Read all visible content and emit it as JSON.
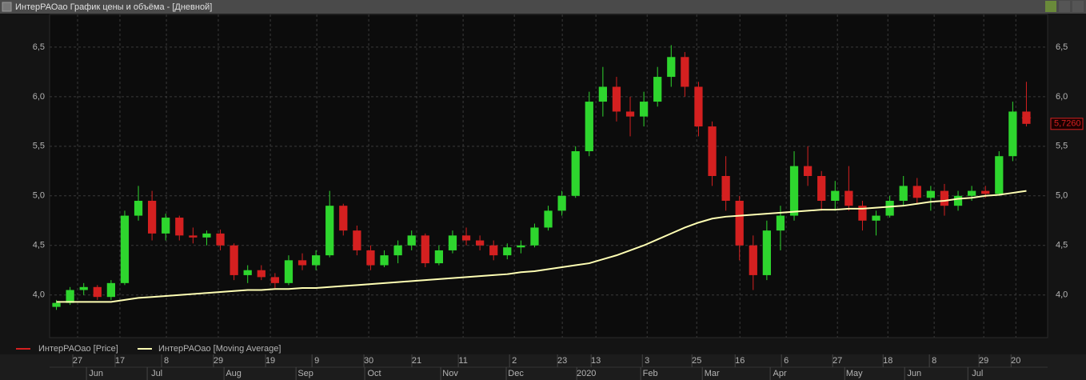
{
  "window_title": "ИнтерРАОао График цены и объёма - [Дневной]",
  "chart_data": {
    "type": "candlestick",
    "series": [
      {
        "name": "ИнтерРАОао [Price]",
        "color": "#d42020",
        "up_color": "#2ed62e",
        "down_color": "#d42020",
        "open": [
          3.88,
          3.92,
          4.05,
          4.08,
          3.98,
          4.12,
          4.8,
          4.95,
          4.62,
          4.78,
          4.6,
          4.58,
          4.62,
          4.5,
          4.2,
          4.25,
          4.18,
          4.12,
          4.35,
          4.3,
          4.4,
          4.9,
          4.65,
          4.45,
          4.3,
          4.4,
          4.5,
          4.6,
          4.32,
          4.45,
          4.6,
          4.55,
          4.5,
          4.4,
          4.48,
          4.5,
          4.68,
          4.85,
          5.0,
          5.45,
          5.95,
          6.1,
          5.85,
          5.8,
          5.95,
          6.2,
          6.4,
          6.1,
          5.7,
          5.2,
          4.95,
          4.5,
          4.2,
          4.65,
          4.8,
          5.3,
          5.2,
          4.95,
          5.05,
          4.9,
          4.75,
          4.8,
          4.95,
          5.1,
          4.98,
          5.05,
          4.9,
          5.0,
          5.05,
          5.02,
          5.4,
          5.85
        ],
        "high": [
          3.95,
          4.08,
          4.12,
          4.1,
          4.15,
          4.85,
          5.1,
          5.05,
          4.82,
          4.8,
          4.68,
          4.65,
          4.66,
          4.52,
          4.3,
          4.3,
          4.22,
          4.4,
          4.42,
          4.45,
          5.05,
          4.92,
          4.7,
          4.5,
          4.45,
          4.55,
          4.65,
          4.62,
          4.5,
          4.65,
          4.68,
          4.6,
          4.55,
          4.52,
          4.55,
          4.72,
          4.9,
          5.05,
          5.5,
          6.05,
          6.3,
          6.2,
          6.0,
          6.05,
          6.3,
          6.52,
          6.45,
          6.15,
          5.75,
          5.4,
          5.0,
          4.6,
          4.75,
          4.9,
          5.45,
          5.5,
          5.25,
          5.15,
          5.3,
          4.95,
          4.85,
          5.0,
          5.2,
          5.18,
          5.1,
          5.12,
          5.05,
          5.1,
          5.1,
          5.45,
          5.95,
          6.15
        ],
        "low": [
          3.85,
          3.9,
          4.0,
          3.95,
          3.95,
          4.1,
          4.75,
          4.55,
          4.55,
          4.55,
          4.52,
          4.5,
          4.45,
          4.15,
          4.12,
          4.15,
          4.07,
          4.1,
          4.25,
          4.25,
          4.38,
          4.6,
          4.4,
          4.25,
          4.28,
          4.32,
          4.45,
          4.28,
          4.3,
          4.42,
          4.5,
          4.45,
          4.35,
          4.36,
          4.42,
          4.48,
          4.65,
          4.8,
          4.98,
          5.4,
          5.8,
          5.75,
          5.6,
          5.7,
          5.9,
          6.1,
          6.0,
          5.6,
          5.1,
          4.85,
          4.35,
          4.05,
          4.15,
          4.45,
          4.75,
          5.1,
          4.85,
          4.85,
          4.85,
          4.65,
          4.6,
          4.78,
          4.9,
          4.92,
          4.85,
          4.8,
          4.85,
          4.95,
          4.98,
          5.0,
          5.35,
          5.7
        ],
        "close": [
          3.92,
          4.05,
          4.08,
          3.98,
          4.12,
          4.8,
          4.95,
          4.62,
          4.78,
          4.6,
          4.58,
          4.62,
          4.5,
          4.2,
          4.25,
          4.18,
          4.12,
          4.35,
          4.3,
          4.4,
          4.9,
          4.65,
          4.45,
          4.3,
          4.4,
          4.5,
          4.6,
          4.32,
          4.45,
          4.6,
          4.55,
          4.5,
          4.4,
          4.48,
          4.5,
          4.68,
          4.85,
          5.0,
          5.45,
          5.95,
          6.1,
          5.85,
          5.8,
          5.95,
          6.2,
          6.4,
          6.1,
          5.7,
          5.2,
          4.95,
          4.5,
          4.2,
          4.65,
          4.8,
          5.3,
          5.2,
          4.95,
          5.05,
          4.9,
          4.75,
          4.8,
          4.95,
          5.1,
          4.98,
          5.05,
          4.9,
          5.0,
          5.05,
          5.02,
          5.4,
          5.85,
          5.726
        ]
      },
      {
        "name": "ИнтерРАОао [Moving Average]",
        "color": "#ffffb4",
        "values": [
          3.93,
          3.93,
          3.93,
          3.93,
          3.93,
          3.95,
          3.97,
          3.98,
          3.99,
          4.0,
          4.01,
          4.02,
          4.03,
          4.04,
          4.05,
          4.05,
          4.06,
          4.06,
          4.07,
          4.07,
          4.08,
          4.09,
          4.1,
          4.11,
          4.12,
          4.13,
          4.14,
          4.15,
          4.16,
          4.17,
          4.18,
          4.19,
          4.2,
          4.21,
          4.23,
          4.24,
          4.26,
          4.28,
          4.3,
          4.32,
          4.36,
          4.4,
          4.45,
          4.5,
          4.56,
          4.62,
          4.68,
          4.73,
          4.77,
          4.79,
          4.8,
          4.81,
          4.82,
          4.83,
          4.84,
          4.85,
          4.86,
          4.86,
          4.87,
          4.87,
          4.88,
          4.89,
          4.9,
          4.92,
          4.94,
          4.95,
          4.97,
          4.98,
          5.0,
          5.01,
          5.03,
          5.05
        ]
      }
    ],
    "last_price": 5.726,
    "last_price_label": "5,7260",
    "xlim": [
      0,
      72
    ],
    "xticks": [
      {
        "value": 2.05,
        "label": "27"
      },
      {
        "value": 5.15,
        "label": "17"
      },
      {
        "value": 8.55,
        "label": "8"
      },
      {
        "value": 12.35,
        "label": "29"
      },
      {
        "value": 16.16,
        "label": "19"
      },
      {
        "value": 19.56,
        "label": "9"
      },
      {
        "value": 23.36,
        "label": "30"
      },
      {
        "value": 26.87,
        "label": "21"
      },
      {
        "value": 30.27,
        "label": "11"
      },
      {
        "value": 34.02,
        "label": "2"
      },
      {
        "value": 37.53,
        "label": "23"
      },
      {
        "value": 39.99,
        "label": "13"
      },
      {
        "value": 43.74,
        "label": "3"
      },
      {
        "value": 47.37,
        "label": "25"
      },
      {
        "value": 50.53,
        "label": "16"
      },
      {
        "value": 53.92,
        "label": "6"
      },
      {
        "value": 57.67,
        "label": "27"
      },
      {
        "value": 61.36,
        "label": "18"
      },
      {
        "value": 64.75,
        "label": "8"
      },
      {
        "value": 68.38,
        "label": "29"
      },
      {
        "value": 70.73,
        "label": "20"
      }
    ],
    "xticks_months": [
      {
        "value": 3.4,
        "label": "Jun"
      },
      {
        "value": 7.85,
        "label": "Jul"
      },
      {
        "value": 13.47,
        "label": "Aug"
      },
      {
        "value": 18.74,
        "label": "Sep"
      },
      {
        "value": 23.77,
        "label": "Oct"
      },
      {
        "value": 29.33,
        "label": "Nov"
      },
      {
        "value": 34.13,
        "label": "Dec"
      },
      {
        "value": 39.29,
        "label": "2020"
      },
      {
        "value": 43.97,
        "label": "Feb"
      },
      {
        "value": 48.48,
        "label": "Mar"
      },
      {
        "value": 53.45,
        "label": "Apr"
      },
      {
        "value": 58.9,
        "label": "May"
      },
      {
        "value": 63.29,
        "label": "Jun"
      },
      {
        "value": 67.92,
        "label": "Jul"
      }
    ],
    "ylim": [
      3.57,
      6.83
    ],
    "yticks": [
      {
        "value": 4.0,
        "label": "4,0"
      },
      {
        "value": 4.5,
        "label": "4,5"
      },
      {
        "value": 5.0,
        "label": "5,0"
      },
      {
        "value": 5.5,
        "label": "5,5"
      },
      {
        "value": 6.0,
        "label": "6,0"
      },
      {
        "value": 6.5,
        "label": "6,5"
      }
    ],
    "grid": true
  }
}
